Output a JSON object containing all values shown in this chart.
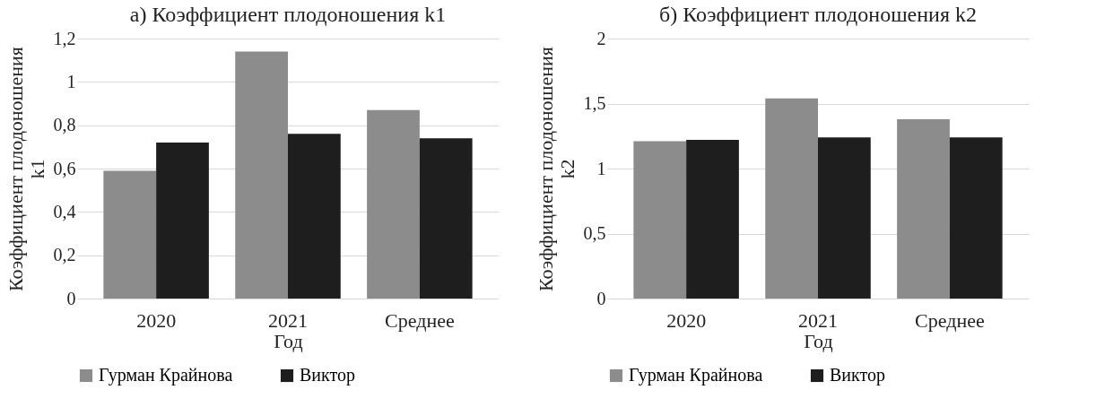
{
  "chart_data": [
    {
      "type": "bar",
      "title": "а) Коэффициент плодоношения k1",
      "xlabel": "Год",
      "ylabel": "Коэффициент плодоношения k1",
      "categories": [
        "2020",
        "2021",
        "Среднее"
      ],
      "series": [
        {
          "name": "Гурман Крайнова",
          "color": "#8c8c8c",
          "values": [
            0.59,
            1.14,
            0.87
          ]
        },
        {
          "name": "Виктор",
          "color": "#1e1e1e",
          "values": [
            0.72,
            0.76,
            0.74
          ]
        }
      ],
      "ylim": [
        0,
        1.2
      ],
      "yticks": [
        0,
        {
          "value": 0.2,
          "label": "0,2"
        },
        {
          "value": 0.4,
          "label": "0,4"
        },
        {
          "value": 0.6,
          "label": "0,6"
        },
        {
          "value": 0.8,
          "label": "0,8"
        },
        1,
        {
          "value": 1.2,
          "label": "1,2"
        }
      ],
      "grid": "y",
      "legend": "bottom"
    },
    {
      "type": "bar",
      "title": "б) Коэффициент плодоношения k2",
      "xlabel": "Год",
      "ylabel": "Коэффициент плодоношения k2",
      "categories": [
        "2020",
        "2021",
        "Среднее"
      ],
      "series": [
        {
          "name": "Гурман Крайнова",
          "color": "#8c8c8c",
          "values": [
            1.21,
            1.54,
            1.38
          ]
        },
        {
          "name": "Виктор",
          "color": "#1e1e1e",
          "values": [
            1.22,
            1.24,
            1.24
          ]
        }
      ],
      "ylim": [
        0,
        2
      ],
      "yticks": [
        0,
        {
          "value": 0.5,
          "label": "0,5"
        },
        1,
        {
          "value": 1.5,
          "label": "1,5"
        },
        2
      ],
      "grid": "y",
      "legend": "bottom"
    }
  ]
}
